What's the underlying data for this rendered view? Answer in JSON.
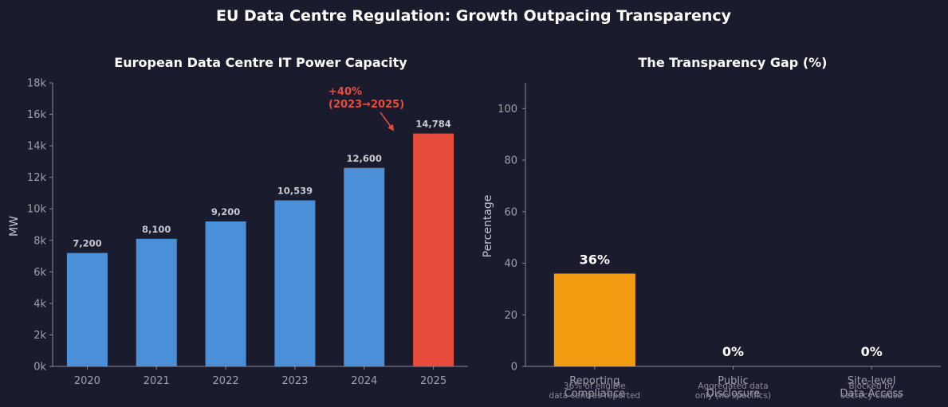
{
  "suptitle": "EU Data Centre Regulation: Growth Outpacing Transparency",
  "colors": {
    "background": "#1b1b2e",
    "blue": "#4a90d9",
    "red": "#e74c3c",
    "orange": "#f39c12",
    "axis": "#8a8a96"
  },
  "chart_data": [
    {
      "type": "bar",
      "title": "European Data Centre IT Power Capacity",
      "xlabel": "",
      "ylabel": "MW",
      "ylim": [
        0,
        18000
      ],
      "yticks": [
        0,
        2000,
        4000,
        6000,
        8000,
        10000,
        12000,
        14000,
        16000,
        18000
      ],
      "ytick_labels": [
        "0k",
        "2k",
        "4k",
        "6k",
        "8k",
        "10k",
        "12k",
        "14k",
        "16k",
        "18k"
      ],
      "categories": [
        "2020",
        "2021",
        "2022",
        "2023",
        "2024",
        "2025"
      ],
      "values": [
        7200,
        8100,
        9200,
        10539,
        12600,
        14784
      ],
      "value_labels": [
        "7,200",
        "8,100",
        "9,200",
        "10,539",
        "12,600",
        "14,784"
      ],
      "bar_colors": [
        "#4a90d9",
        "#4a90d9",
        "#4a90d9",
        "#4a90d9",
        "#4a90d9",
        "#e74c3c"
      ],
      "annotation": {
        "line1": "+40%",
        "line2": "(2023→2025)"
      }
    },
    {
      "type": "bar",
      "title": "The Transparency Gap (%)",
      "xlabel": "",
      "ylabel": "Percentage",
      "ylim": [
        0,
        110
      ],
      "yticks": [
        0,
        20,
        40,
        60,
        80,
        100
      ],
      "ytick_labels": [
        "0",
        "20",
        "40",
        "60",
        "80",
        "100"
      ],
      "categories": [
        {
          "line1": "Reporting",
          "line2": "Compliance",
          "sub1": "36% of eligible",
          "sub2": "data centres reported"
        },
        {
          "line1": "Public",
          "line2": "Disclosure",
          "sub1": "Aggregated data",
          "sub2": "only (no specifics)"
        },
        {
          "line1": "Site-level",
          "line2": "Data Access",
          "sub1": "Blocked by",
          "sub2": "secrecy clause"
        }
      ],
      "values": [
        36,
        0,
        0
      ],
      "value_labels": [
        "36%",
        "0%",
        "0%"
      ],
      "bar_colors": [
        "#f39c12",
        "#f39c12",
        "#f39c12"
      ]
    }
  ]
}
